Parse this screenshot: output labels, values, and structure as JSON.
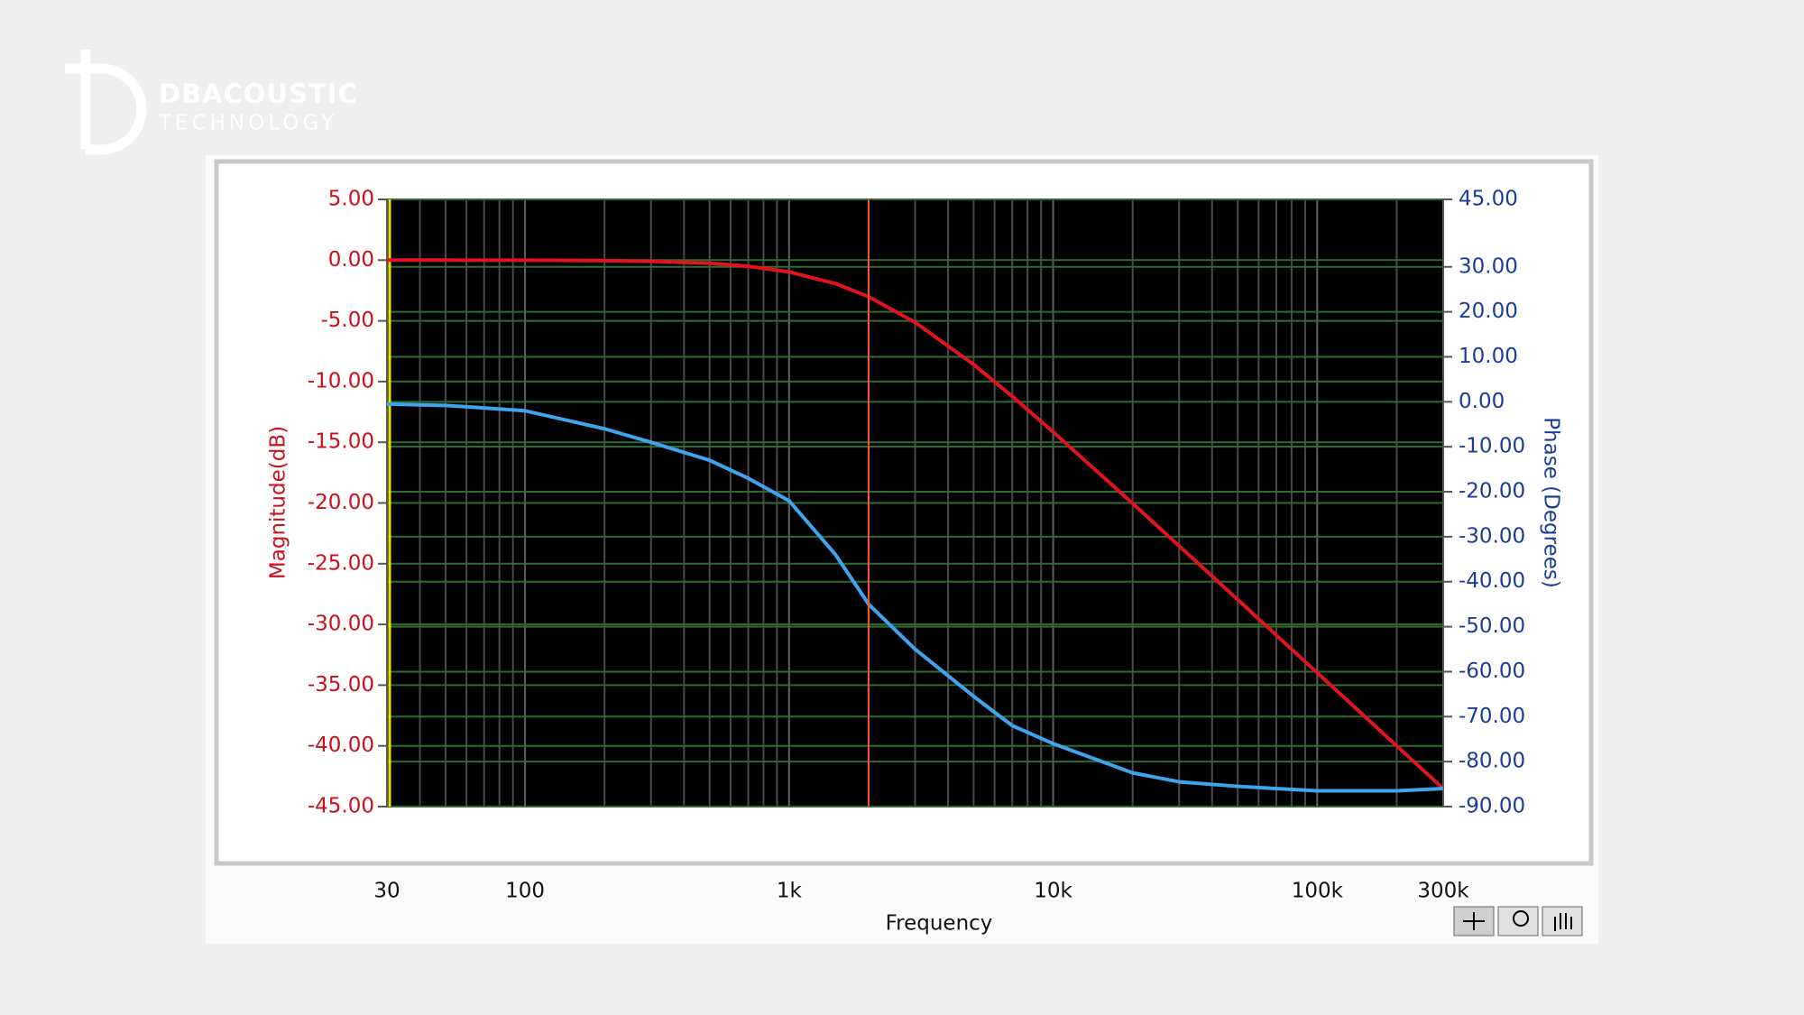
{
  "logo": {
    "name": "DBACOUSTIC",
    "tagline": "TECHNOLOGY"
  },
  "chart_data": {
    "type": "line",
    "xlabel": "Frequency",
    "ylabel": "Magnitude(dB)",
    "y2label": "Phase (Degrees)",
    "xscale": "log",
    "x": [
      30,
      50,
      100,
      200,
      300,
      500,
      700,
      1000,
      1500,
      2000,
      3000,
      5000,
      7000,
      10000,
      20000,
      30000,
      50000,
      100000,
      200000,
      300000
    ],
    "series": [
      {
        "color": "#e0141e",
        "values": [
          0.0,
          0.0,
          -0.01,
          -0.04,
          -0.1,
          -0.26,
          -0.51,
          -0.97,
          -1.94,
          -3.01,
          -5.12,
          -8.6,
          -11.22,
          -14.15,
          -20.04,
          -23.54,
          -27.96,
          -33.98,
          -40.0,
          -43.52
        ]
      },
      {
        "color": "#3ea4ec",
        "axis": "y2",
        "values": [
          -0.5,
          -0.8,
          -2,
          -6,
          -9,
          -13,
          -17,
          -22,
          -34,
          -45,
          -55,
          -65.5,
          -72,
          -76,
          -82.5,
          -84.5,
          -85.5,
          -86.5,
          -86.5,
          -86
        ]
      }
    ],
    "xlim": [
      30,
      300000
    ],
    "xticks": [
      30,
      100,
      {
        "value": 1000,
        "label": "1k"
      },
      {
        "value": 10000,
        "label": "10k"
      },
      {
        "value": 100000,
        "label": "100k"
      },
      {
        "value": 300000,
        "label": "300k"
      }
    ],
    "ylim": [
      -45,
      5
    ],
    "yticks": [
      {
        "value": -45,
        "label": "-45.00"
      },
      {
        "value": -40,
        "label": "-40.00"
      },
      {
        "value": -35,
        "label": "-35.00"
      },
      {
        "value": -30,
        "label": "-30.00"
      },
      {
        "value": -25,
        "label": "-25.00"
      },
      {
        "value": -20,
        "label": "-20.00"
      },
      {
        "value": -15,
        "label": "-15.00"
      },
      {
        "value": -10,
        "label": "-10.00"
      },
      {
        "value": -5,
        "label": "-5.00"
      },
      {
        "value": 0,
        "label": "0.00"
      },
      {
        "value": 5,
        "label": "5.00"
      }
    ],
    "y2lim": [
      -90,
      45
    ],
    "y2ticks": [
      {
        "value": -90,
        "label": "-90.00"
      },
      {
        "value": -80,
        "label": "-80.00"
      },
      {
        "value": -70,
        "label": "-70.00"
      },
      {
        "value": -60,
        "label": "-60.00"
      },
      {
        "value": -50,
        "label": "-50.00"
      },
      {
        "value": -40,
        "label": "-40.00"
      },
      {
        "value": -30,
        "label": "-30.00"
      },
      {
        "value": -20,
        "label": "-20.00"
      },
      {
        "value": -10,
        "label": "-10.00"
      },
      {
        "value": 0,
        "label": "0.00"
      },
      {
        "value": 10,
        "label": "10.00"
      },
      {
        "value": 20,
        "label": "20.00"
      },
      {
        "value": 30,
        "label": "30.00"
      },
      {
        "value": 45,
        "label": "45.00"
      }
    ],
    "grid": true,
    "cursor": 2000
  }
}
